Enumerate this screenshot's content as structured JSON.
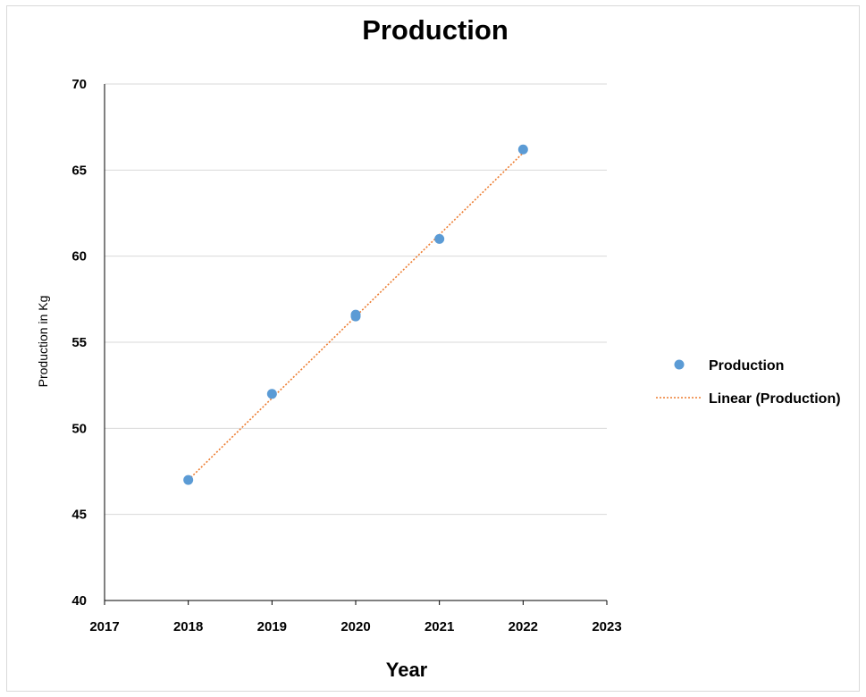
{
  "chart_data": {
    "type": "scatter",
    "title": "Production",
    "xlabel": "Year",
    "ylabel": "Production in Kg",
    "xlim": [
      2017,
      2023
    ],
    "ylim": [
      40,
      70
    ],
    "xticks": [
      "2017",
      "2018",
      "2019",
      "2020",
      "2021",
      "2022",
      "2023"
    ],
    "yticks": [
      "40",
      "45",
      "50",
      "55",
      "60",
      "65",
      "70"
    ],
    "grid": "horizontal",
    "legend_position": "right",
    "series": [
      {
        "name": "Production",
        "kind": "scatter",
        "color": "#5b9bd5",
        "points": [
          {
            "x": 2018,
            "y": 47
          },
          {
            "x": 2019,
            "y": 52
          },
          {
            "x": 2020,
            "y": 56.5
          },
          {
            "x": 2020,
            "y": 56.6
          },
          {
            "x": 2021,
            "y": 61
          },
          {
            "x": 2022,
            "y": 66.2
          }
        ]
      },
      {
        "name": "Linear (Production)",
        "kind": "trendline",
        "color": "#ed7d31",
        "style": "dotted",
        "points": [
          {
            "x": 2018,
            "y": 47
          },
          {
            "x": 2022,
            "y": 66
          }
        ]
      }
    ]
  }
}
